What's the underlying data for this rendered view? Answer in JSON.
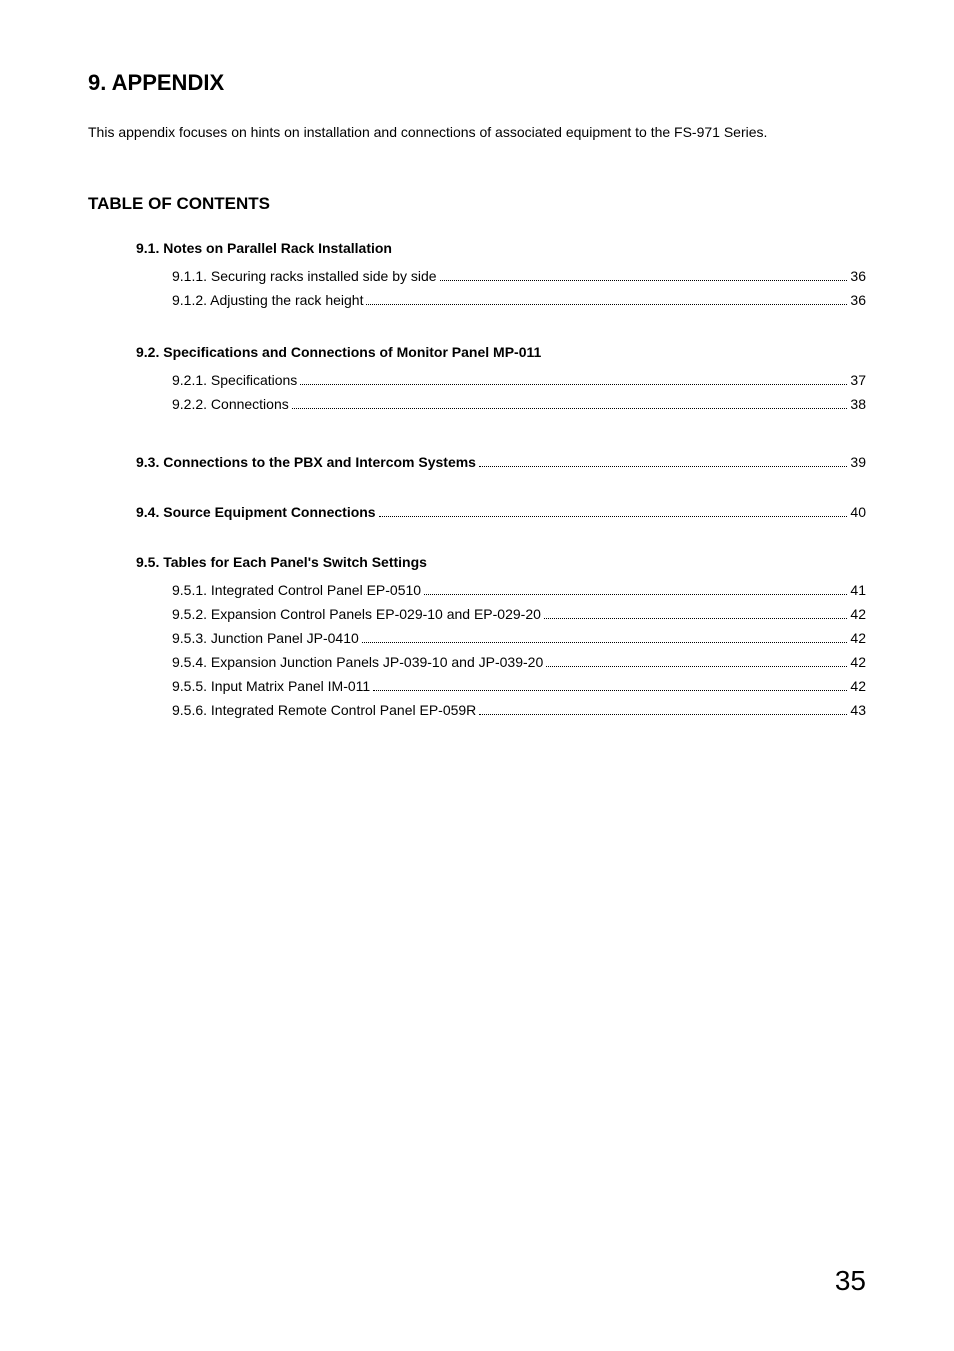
{
  "title": "9. APPENDIX",
  "intro": "This appendix focuses on hints on installation and connections of associated equipment to the FS-971 Series.",
  "toc_title": "TABLE OF CONTENTS",
  "sections": [
    {
      "head": "9.1. Notes on Parallel Rack Installation",
      "items": [
        {
          "label": "9.1.1. Securing racks installed side by side",
          "page": "36"
        },
        {
          "label": "9.1.2. Adjusting the rack height",
          "page": "36"
        }
      ]
    },
    {
      "head": "9.2. Specifications and Connections of Monitor Panel MP-011",
      "items": [
        {
          "label": "9.2.1. Specifications",
          "page": "37"
        },
        {
          "label": "9.2.2. Connections",
          "page": "38"
        }
      ]
    }
  ],
  "linked_sections": [
    {
      "label": "9.3. Connections to the PBX and Intercom Systems",
      "page": "39"
    },
    {
      "label": "9.4. Source Equipment Connections",
      "page": "40"
    }
  ],
  "section95": {
    "head": "9.5. Tables for Each Panel's Switch Settings",
    "items": [
      {
        "label": "9.5.1. Integrated Control Panel EP-0510",
        "page": "41"
      },
      {
        "label": "9.5.2. Expansion Control Panels EP-029-10 and EP-029-20",
        "page": "42"
      },
      {
        "label": "9.5.3. Junction Panel JP-0410",
        "page": "42"
      },
      {
        "label": "9.5.4. Expansion Junction Panels JP-039-10 and JP-039-20",
        "page": "42"
      },
      {
        "label": "9.5.5. Input Matrix Panel IM-011",
        "page": "42"
      },
      {
        "label": "9.5.6. Integrated Remote Control Panel EP-059R",
        "page": "43"
      }
    ]
  },
  "page_number": "35"
}
